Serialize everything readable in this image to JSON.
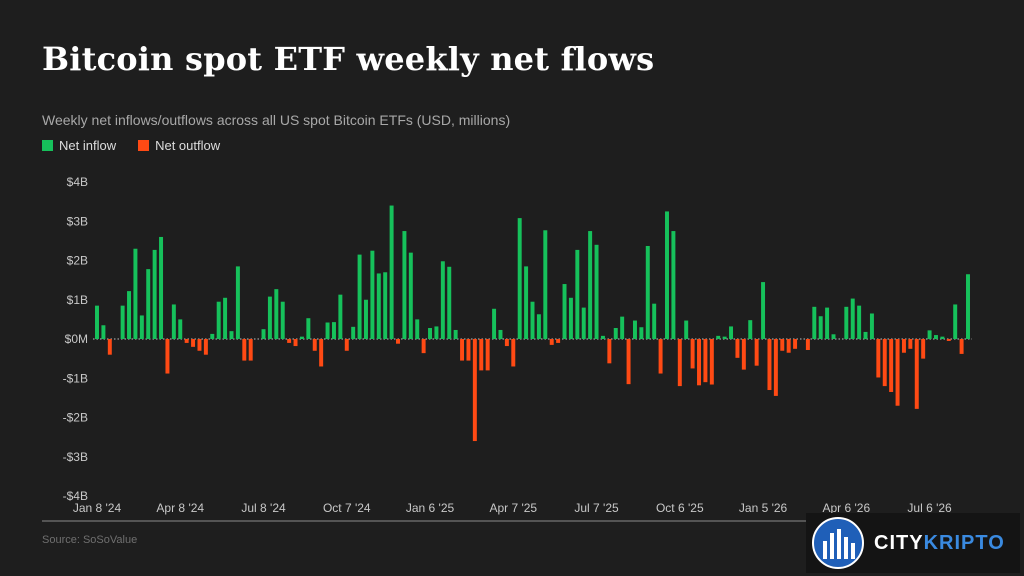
{
  "header": {
    "title": "Bitcoin spot ETF weekly net flows",
    "subtitle": "Weekly net inflows/outflows across all US spot Bitcoin ETFs (USD, millions)"
  },
  "legend": {
    "inflow_label": "Net inflow",
    "outflow_label": "Net outflow"
  },
  "footer": {
    "source": "Source: SoSoValue"
  },
  "badge": {
    "brand_part1": "CITY",
    "brand_part2": "KRIPTO"
  },
  "colors": {
    "inflow": "#16c15b",
    "outflow": "#ff4a14",
    "background": "#1e1e1e",
    "axis_text": "#c8c8c8"
  },
  "chart_data": {
    "type": "bar",
    "ylim": [
      -4,
      4
    ],
    "y_ticks": [
      {
        "value": 4,
        "label": "$4B"
      },
      {
        "value": 3,
        "label": "$3B"
      },
      {
        "value": 2,
        "label": "$2B"
      },
      {
        "value": 1,
        "label": "$1B"
      },
      {
        "value": 0,
        "label": "$0M"
      },
      {
        "value": -1,
        "label": "-$1B"
      },
      {
        "value": -2,
        "label": "-$2B"
      },
      {
        "value": -3,
        "label": "-$3B"
      },
      {
        "value": -4,
        "label": "-$4B"
      }
    ],
    "x_ticks": [
      {
        "index": 0,
        "label": "Jan 8 '24"
      },
      {
        "index": 13,
        "label": "Apr 8 '24"
      },
      {
        "index": 26,
        "label": "Jul 8 '24"
      },
      {
        "index": 39,
        "label": "Oct 7 '24"
      },
      {
        "index": 52,
        "label": "Jan 6 '25"
      },
      {
        "index": 65,
        "label": "Apr 7 '25"
      },
      {
        "index": 78,
        "label": "Jul 7 '25"
      },
      {
        "index": 91,
        "label": "Oct 6 '25"
      },
      {
        "index": 104,
        "label": "Jan 5 '26"
      },
      {
        "index": 117,
        "label": "Apr 6 '26"
      },
      {
        "index": 130,
        "label": "Jul 6 '26"
      }
    ],
    "values_billions": [
      0.85,
      0.35,
      -0.4,
      0.0,
      0.85,
      1.22,
      2.3,
      0.6,
      1.78,
      2.27,
      2.6,
      -0.88,
      0.88,
      0.5,
      -0.1,
      -0.2,
      -0.3,
      -0.4,
      0.13,
      0.95,
      1.05,
      0.2,
      1.85,
      -0.55,
      -0.55,
      0.0,
      0.25,
      1.08,
      1.27,
      0.95,
      -0.1,
      -0.18,
      0.06,
      0.53,
      -0.3,
      -0.7,
      0.42,
      0.43,
      1.13,
      -0.3,
      0.31,
      2.15,
      1.0,
      2.25,
      1.67,
      1.7,
      3.4,
      -0.12,
      2.75,
      2.2,
      0.5,
      -0.36,
      0.28,
      0.32,
      1.98,
      1.84,
      0.23,
      -0.55,
      -0.55,
      -2.6,
      -0.8,
      -0.8,
      0.77,
      0.23,
      -0.18,
      -0.7,
      3.08,
      1.85,
      0.95,
      0.63,
      2.77,
      -0.15,
      -0.1,
      1.4,
      1.05,
      2.27,
      0.8,
      2.75,
      2.4,
      0.08,
      -0.62,
      0.28,
      0.57,
      -1.15,
      0.47,
      0.3,
      2.37,
      0.9,
      -0.88,
      3.25,
      2.75,
      -1.2,
      0.47,
      -0.75,
      -1.18,
      -1.1,
      -1.16,
      0.08,
      0.06,
      0.32,
      -0.48,
      -0.78,
      0.48,
      -0.68,
      1.45,
      -1.3,
      -1.45,
      -0.3,
      -0.35,
      -0.25,
      0.0,
      -0.28,
      0.82,
      0.58,
      0.8,
      0.12,
      0.0,
      0.82,
      1.03,
      0.85,
      0.18,
      0.65,
      -0.98,
      -1.2,
      -1.35,
      -1.7,
      -0.35,
      -0.25,
      -1.78,
      -0.5,
      0.22,
      0.1,
      0.06,
      -0.05,
      0.88,
      -0.38,
      1.65
    ]
  }
}
